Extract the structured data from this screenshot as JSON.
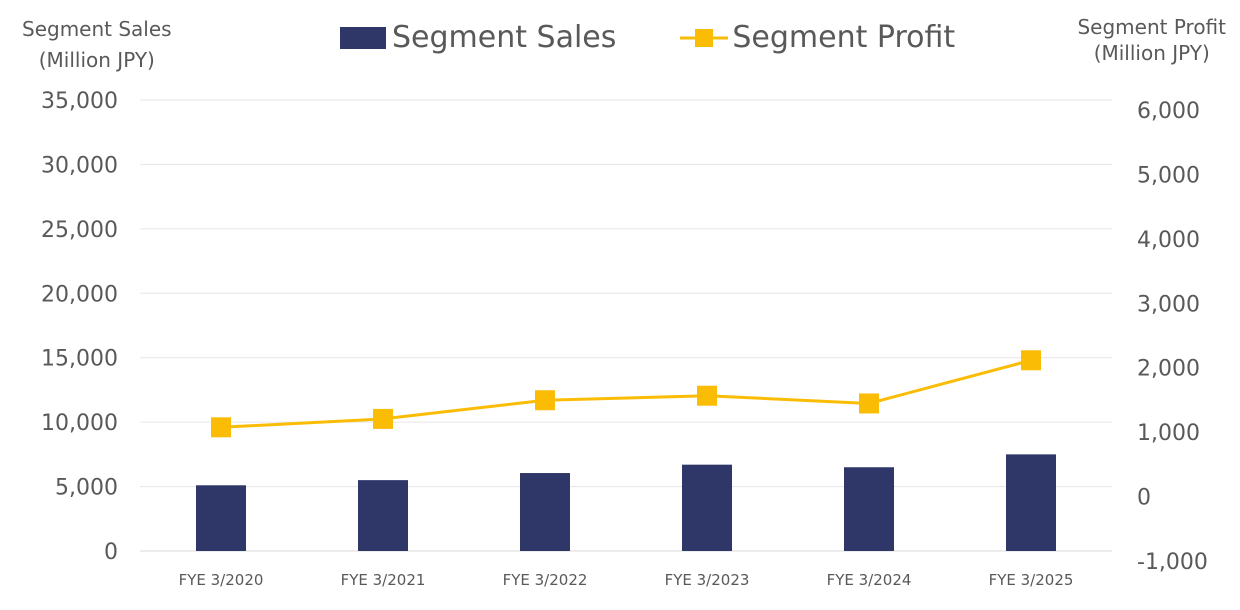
{
  "chart_data": {
    "type": "bar+line",
    "categories": [
      "FYE 3/2020",
      "FYE 3/2021",
      "FYE 3/2022",
      "FYE 3/2023",
      "FYE 3/2024",
      "FYE 3/2025"
    ],
    "series": [
      {
        "name": "Segment Sales",
        "type": "bar",
        "axis": "left",
        "color": "#2f3769",
        "values": [
          5100,
          5500,
          6050,
          6700,
          6500,
          7500
        ]
      },
      {
        "name": "Segment Profit",
        "type": "line",
        "axis": "right",
        "color": "#fbbc05",
        "marker": "square",
        "values": [
          920,
          1050,
          1340,
          1410,
          1290,
          1960
        ]
      }
    ],
    "ylabel_left": [
      "Segment Sales",
      "(Million JPY)"
    ],
    "ylabel_right": [
      "Segment Profit",
      "(Million JPY)"
    ],
    "ylim_left": [
      0,
      35000
    ],
    "ylim_right": [
      -1000,
      6000
    ],
    "yticks_left": [
      "0",
      "5,000",
      "10,000",
      "15,000",
      "20,000",
      "25,000",
      "30,000",
      "35,000"
    ],
    "yticks_right": [
      "-1,000",
      "0",
      "1,000",
      "2,000",
      "3,000",
      "4,000",
      "5,000",
      "6,000"
    ],
    "grid": true,
    "legend": "top"
  }
}
